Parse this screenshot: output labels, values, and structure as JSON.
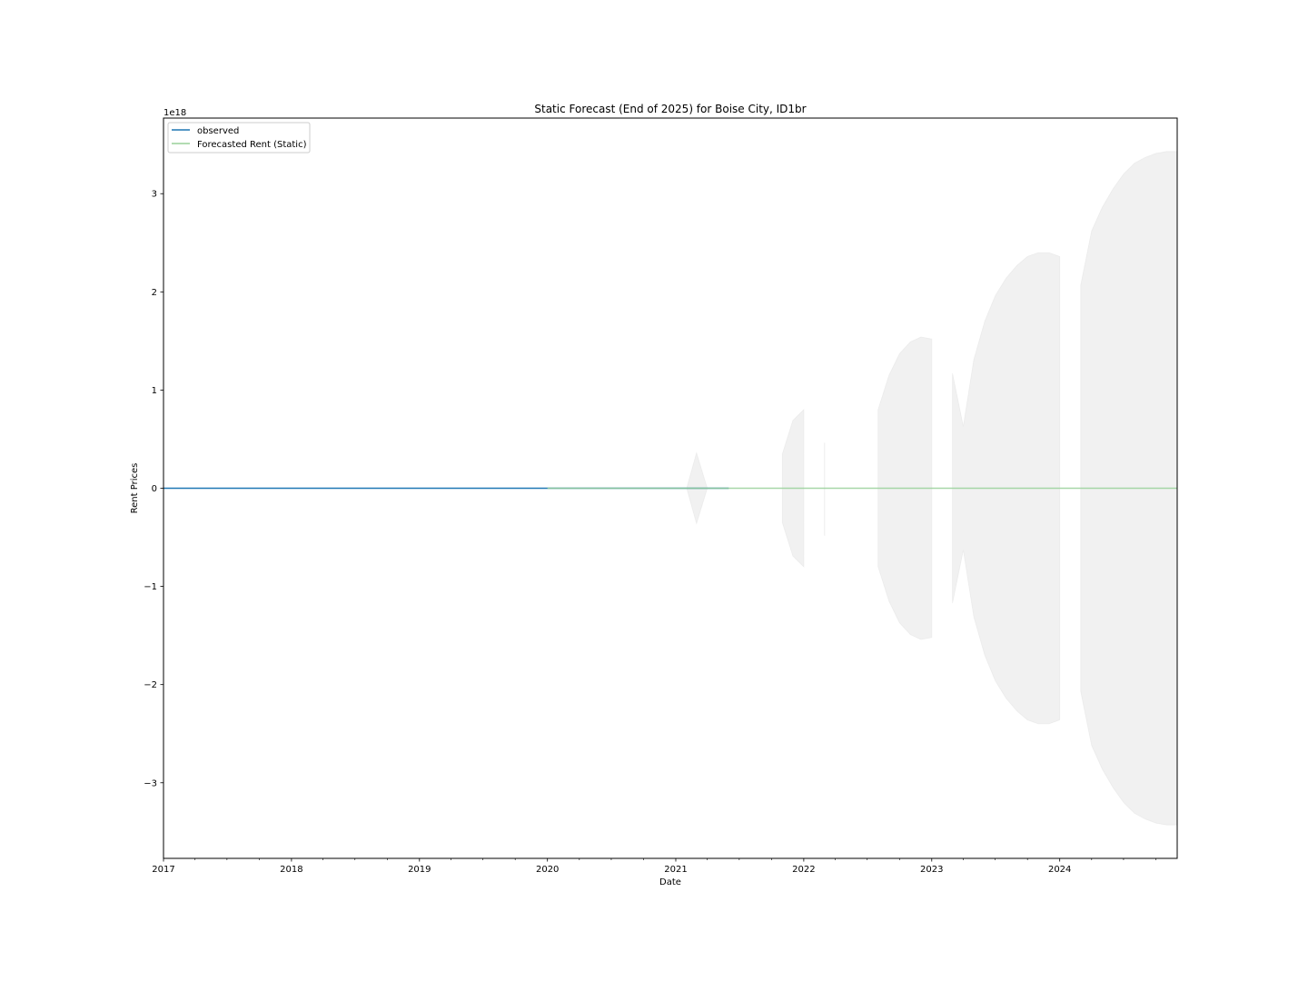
{
  "chart_data": {
    "type": "line",
    "title": "Static Forecast (End of 2025) for Boise City, ID1br",
    "xlabel": "Date",
    "ylabel": "Rent Prices",
    "y_scale_label": "1e18",
    "x_range": [
      "2017-01-01",
      "2024-12-01"
    ],
    "ylim": [
      -3.77,
      3.77
    ],
    "x_ticks": [
      "2017",
      "2018",
      "2019",
      "2020",
      "2021",
      "2022",
      "2023",
      "2024"
    ],
    "y_ticks": [
      {
        "value": -3,
        "label": "−3"
      },
      {
        "value": -2,
        "label": "−2"
      },
      {
        "value": -1,
        "label": "−1"
      },
      {
        "value": 0,
        "label": "0"
      },
      {
        "value": 1,
        "label": "1"
      },
      {
        "value": 2,
        "label": "2"
      },
      {
        "value": 3,
        "label": "3"
      }
    ],
    "grid": false,
    "legend_position": "upper-left",
    "series": [
      {
        "name": "observed",
        "color": "#1f77b4",
        "x": [
          "2017-01-01",
          "2021-06-01"
        ],
        "y": [
          0,
          0
        ]
      },
      {
        "name": "Forecasted Rent (Static)",
        "color": "#98d099",
        "x": [
          "2020-01-01",
          "2024-12-01"
        ],
        "y": [
          0,
          0
        ]
      }
    ],
    "confidence_band": {
      "color": "#dddddd",
      "segments": [
        {
          "x": [
            "2021-02-01",
            "2021-03-01",
            "2021-04-01"
          ],
          "upper": [
            0.0,
            0.36,
            0.0
          ],
          "lower": [
            0.0,
            -0.36,
            0.0
          ]
        },
        {
          "x": [
            "2021-11-01",
            "2021-12-01",
            "2022-01-01"
          ],
          "upper": [
            0.35,
            0.69,
            0.8
          ],
          "lower": [
            -0.35,
            -0.69,
            -0.8
          ]
        },
        {
          "x": [
            "2022-03-01",
            "2022-03-02"
          ],
          "upper": [
            0.46,
            0.46
          ],
          "lower": [
            -0.48,
            -0.48
          ]
        },
        {
          "x": [
            "2022-08-01",
            "2022-09-01",
            "2022-10-01",
            "2022-11-01",
            "2022-12-01",
            "2023-01-01"
          ],
          "upper": [
            0.8,
            1.15,
            1.37,
            1.49,
            1.54,
            1.52
          ],
          "lower": [
            -0.8,
            -1.15,
            -1.37,
            -1.49,
            -1.54,
            -1.52
          ]
        },
        {
          "x": [
            "2023-03-01",
            "2023-04-01",
            "2023-05-01",
            "2023-06-01",
            "2023-07-01",
            "2023-08-01",
            "2023-09-01",
            "2023-10-01",
            "2023-11-01",
            "2023-12-01",
            "2024-01-01"
          ],
          "upper": [
            1.17,
            0.63,
            1.31,
            1.7,
            1.96,
            2.14,
            2.27,
            2.36,
            2.4,
            2.4,
            2.36
          ],
          "lower": [
            -1.17,
            -0.63,
            -1.31,
            -1.7,
            -1.96,
            -2.14,
            -2.27,
            -2.36,
            -2.4,
            -2.4,
            -2.36
          ]
        },
        {
          "x": [
            "2024-03-01",
            "2024-04-01",
            "2024-05-01",
            "2024-06-01",
            "2024-07-01",
            "2024-08-01",
            "2024-09-01",
            "2024-10-01",
            "2024-11-01",
            "2024-12-01"
          ],
          "upper": [
            2.07,
            2.62,
            2.86,
            3.05,
            3.2,
            3.31,
            3.37,
            3.41,
            3.43,
            3.43
          ],
          "lower": [
            -2.07,
            -2.62,
            -2.86,
            -3.05,
            -3.2,
            -3.31,
            -3.37,
            -3.41,
            -3.43,
            -3.43
          ]
        }
      ]
    }
  }
}
